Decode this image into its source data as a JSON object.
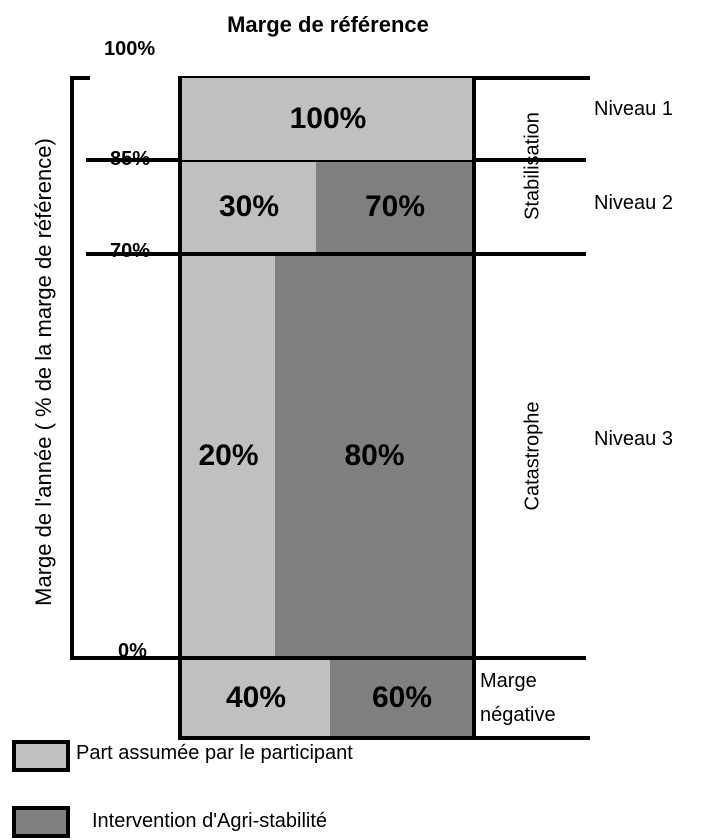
{
  "title": "Marge de référence",
  "y_axis_title": "Marge de l'année ( % de la marge de référence)",
  "y_ticks": {
    "top": "100%",
    "p85": "85%",
    "p70": "70%",
    "zero": "0%"
  },
  "tiers": {
    "level1": {
      "name": "Niveau 1",
      "participant": "100%"
    },
    "level2": {
      "name": "Niveau 2",
      "participant": "30%",
      "program": "70%"
    },
    "level3": {
      "name": "Niveau 3",
      "participant": "20%",
      "program": "80%"
    },
    "negative": {
      "name_line1": "Marge",
      "name_line2": "négative",
      "participant": "40%",
      "program": "60%"
    }
  },
  "zones": {
    "stabilization": "Stabilisation",
    "catastrophe": "Catastrophe"
  },
  "legend": {
    "participant": "Part assumée par le participant",
    "program": "Intervention d'Agri-stabilité"
  },
  "colors": {
    "participant": "#c0c0c0",
    "program": "#808080",
    "line": "#000000"
  }
}
